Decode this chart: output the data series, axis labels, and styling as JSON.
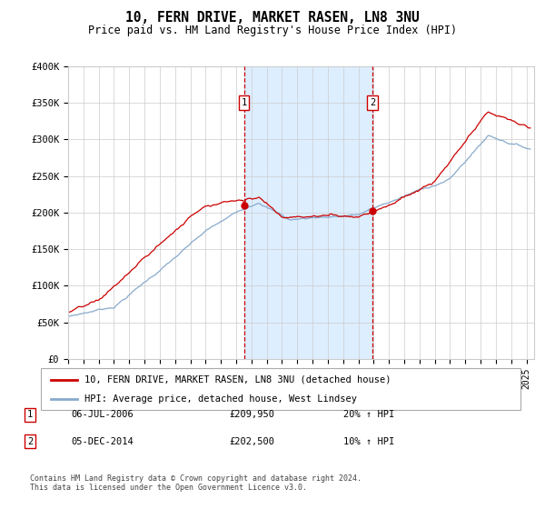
{
  "title": "10, FERN DRIVE, MARKET RASEN, LN8 3NU",
  "subtitle": "Price paid vs. HM Land Registry's House Price Index (HPI)",
  "ylim": [
    0,
    400000
  ],
  "xlim_start": 1995.0,
  "xlim_end": 2025.5,
  "sale1_date": 2006.51,
  "sale1_price": 209950,
  "sale2_date": 2014.92,
  "sale2_price": 202500,
  "legend_line1": "10, FERN DRIVE, MARKET RASEN, LN8 3NU (detached house)",
  "legend_line2": "HPI: Average price, detached house, West Lindsey",
  "table_rows": [
    {
      "num": "1",
      "date": "06-JUL-2006",
      "price": "£209,950",
      "change": "20% ↑ HPI"
    },
    {
      "num": "2",
      "date": "05-DEC-2014",
      "price": "£202,500",
      "change": "10% ↑ HPI"
    }
  ],
  "footer": "Contains HM Land Registry data © Crown copyright and database right 2024.\nThis data is licensed under the Open Government Licence v3.0.",
  "red_color": "#cc0000",
  "blue_color": "#88aacc",
  "shade_color": "#ddeeff",
  "grid_color": "#cccccc"
}
